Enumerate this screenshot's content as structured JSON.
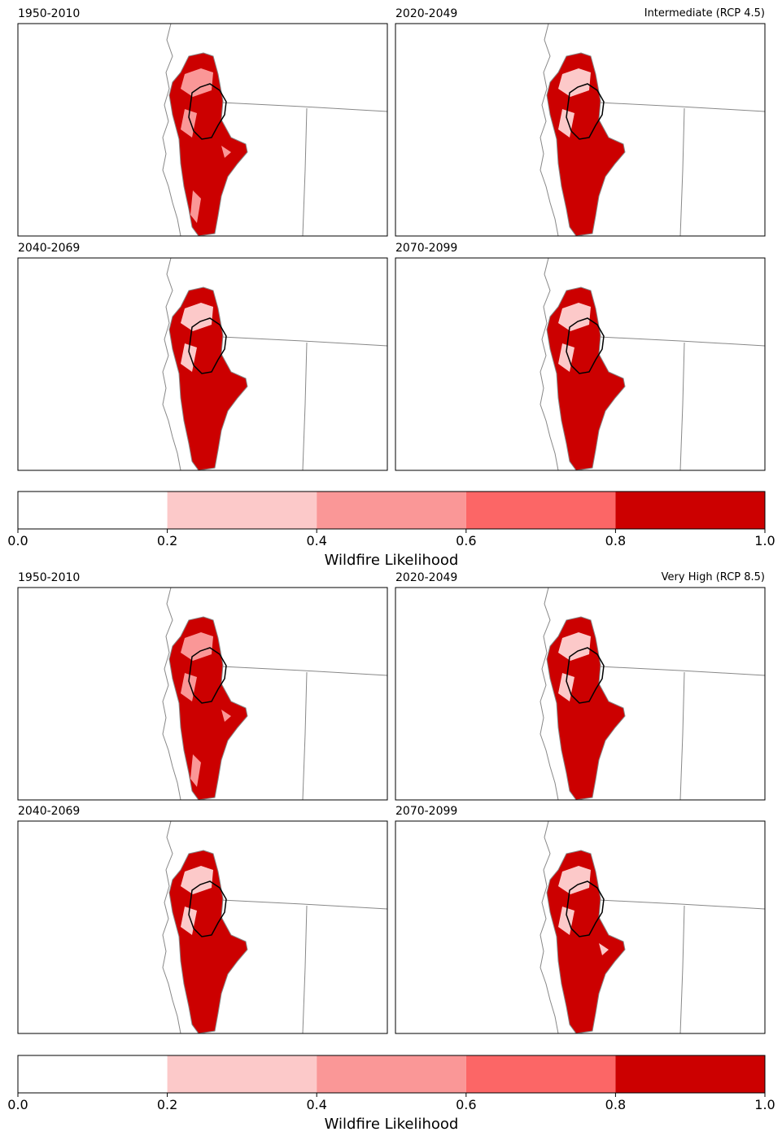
{
  "figures": [
    {
      "scenario": "Intermediate (RCP 4.5)",
      "panels": [
        {
          "title": "1950-2010"
        },
        {
          "title": "2020-2049"
        },
        {
          "title": "2040-2069"
        },
        {
          "title": "2070-2099"
        }
      ],
      "colorbar": {
        "label": "Wildfire Likelihood",
        "colors": [
          "#ffffff",
          "#fcc9c9",
          "#fa9797",
          "#fc6666",
          "#cc0000"
        ],
        "ticks": [
          {
            "value": 0,
            "label": "0.0"
          },
          0.2,
          0.4,
          0.6,
          0.8,
          {
            "value": 1,
            "label": "1.0"
          }
        ]
      }
    },
    {
      "scenario": "Very High (RCP 8.5)",
      "panels": [
        {
          "title": "1950-2010"
        },
        {
          "title": "2020-2049"
        },
        {
          "title": "2040-2069"
        },
        {
          "title": "2070-2099"
        }
      ],
      "colorbar": {
        "label": "Wildfire Likelihood",
        "colors": [
          "#ffffff",
          "#fcc9c9",
          "#fa9797",
          "#fc6666",
          "#cc0000"
        ],
        "ticks": [
          {
            "value": 0,
            "label": "0.0"
          },
          0.2,
          0.4,
          0.6,
          0.8,
          {
            "value": 1,
            "label": "1.0"
          }
        ]
      }
    }
  ]
}
